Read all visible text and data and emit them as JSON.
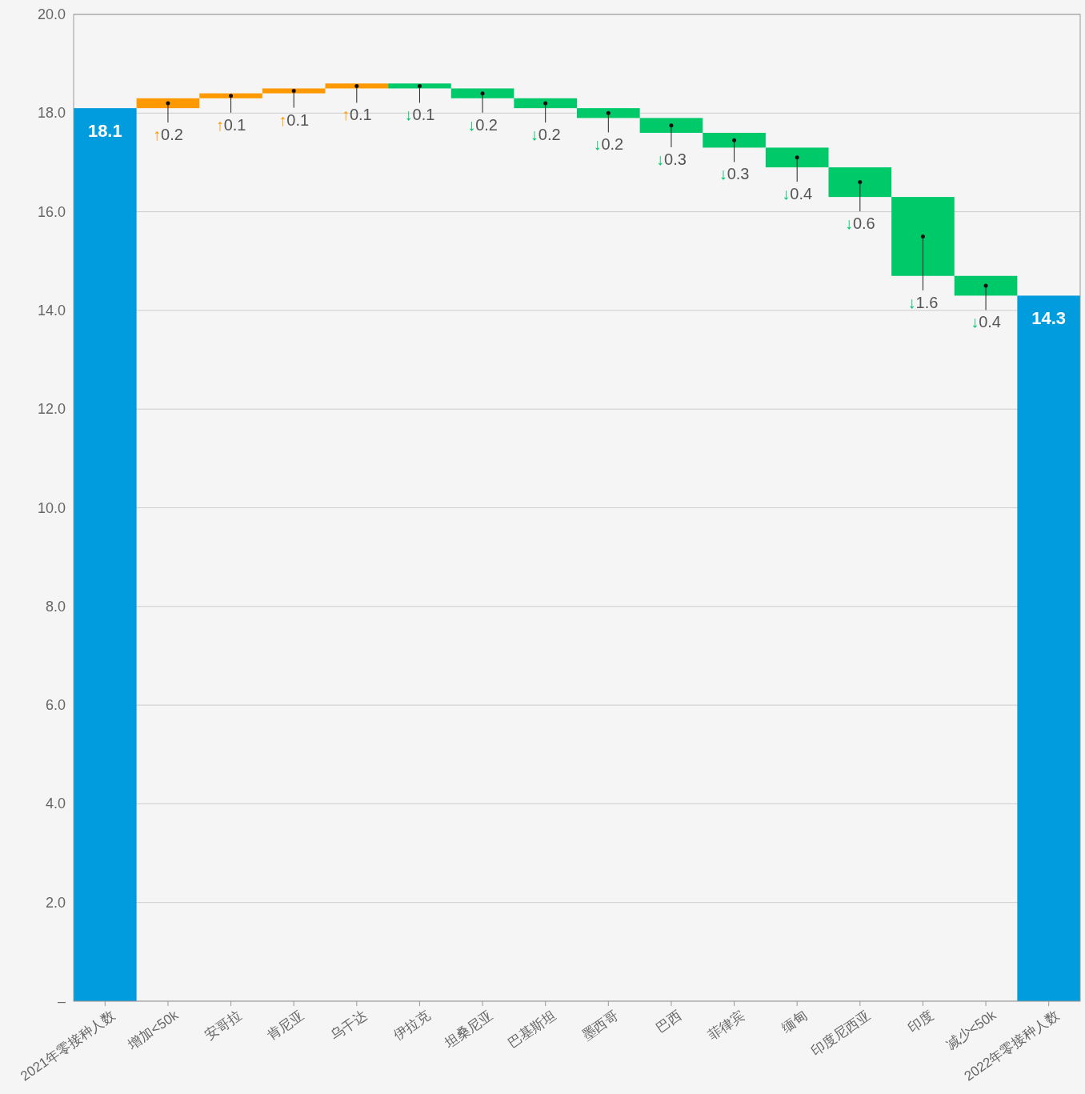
{
  "chart_data": {
    "type": "bar",
    "categories": [
      "2021年零接种人数",
      "增加<50k",
      "安哥拉",
      "肯尼亚",
      "乌干达",
      "伊拉克",
      "坦桑尼亚",
      "巴基斯坦",
      "墨西哥",
      "巴西",
      "菲律宾",
      "缅甸",
      "印度尼西亚",
      "印度",
      "减少<50k",
      "2022年零接种人数"
    ],
    "values": [
      18.1,
      0.2,
      0.1,
      0.1,
      0.1,
      -0.1,
      -0.2,
      -0.2,
      -0.2,
      -0.3,
      -0.3,
      -0.4,
      -0.6,
      -1.6,
      -0.4,
      14.3
    ],
    "base": [
      0,
      18.1,
      18.3,
      18.4,
      18.5,
      18.6,
      18.5,
      18.3,
      18.1,
      17.9,
      17.6,
      17.3,
      16.9,
      16.3,
      14.7,
      0
    ],
    "colors": [
      "#009cde",
      "#ff9900",
      "#ff9900",
      "#ff9900",
      "#ff9900",
      "#00c96a",
      "#00c96a",
      "#00c96a",
      "#00c96a",
      "#00c96a",
      "#00c96a",
      "#00c96a",
      "#00c96a",
      "#00c96a",
      "#00c96a",
      "#009cde"
    ],
    "value_labels": [
      "18.1",
      "↑0.2",
      "↑0.1",
      "↑0.1",
      "↑0.1",
      "↓0.1",
      "↓0.2",
      "↓0.2",
      "↓0.2",
      "↓0.3",
      "↓0.3",
      "↓0.4",
      "↓0.6",
      "↓1.6",
      "↓0.4",
      "14.3"
    ],
    "ylim": [
      0,
      20
    ],
    "yticks": [
      {
        "value": 0,
        "label": "–"
      },
      {
        "value": 2,
        "label": "2.0"
      },
      {
        "value": 4,
        "label": "4.0"
      },
      {
        "value": 6,
        "label": "6.0"
      },
      {
        "value": 8,
        "label": "8.0"
      },
      {
        "value": 10,
        "label": "10.0"
      },
      {
        "value": 12,
        "label": "12.0"
      },
      {
        "value": 14,
        "label": "14.0"
      },
      {
        "value": 16,
        "label": "16.0"
      },
      {
        "value": 18,
        "label": "18.0"
      },
      {
        "value": 20,
        "label": "20.0"
      }
    ],
    "grid": "y"
  }
}
